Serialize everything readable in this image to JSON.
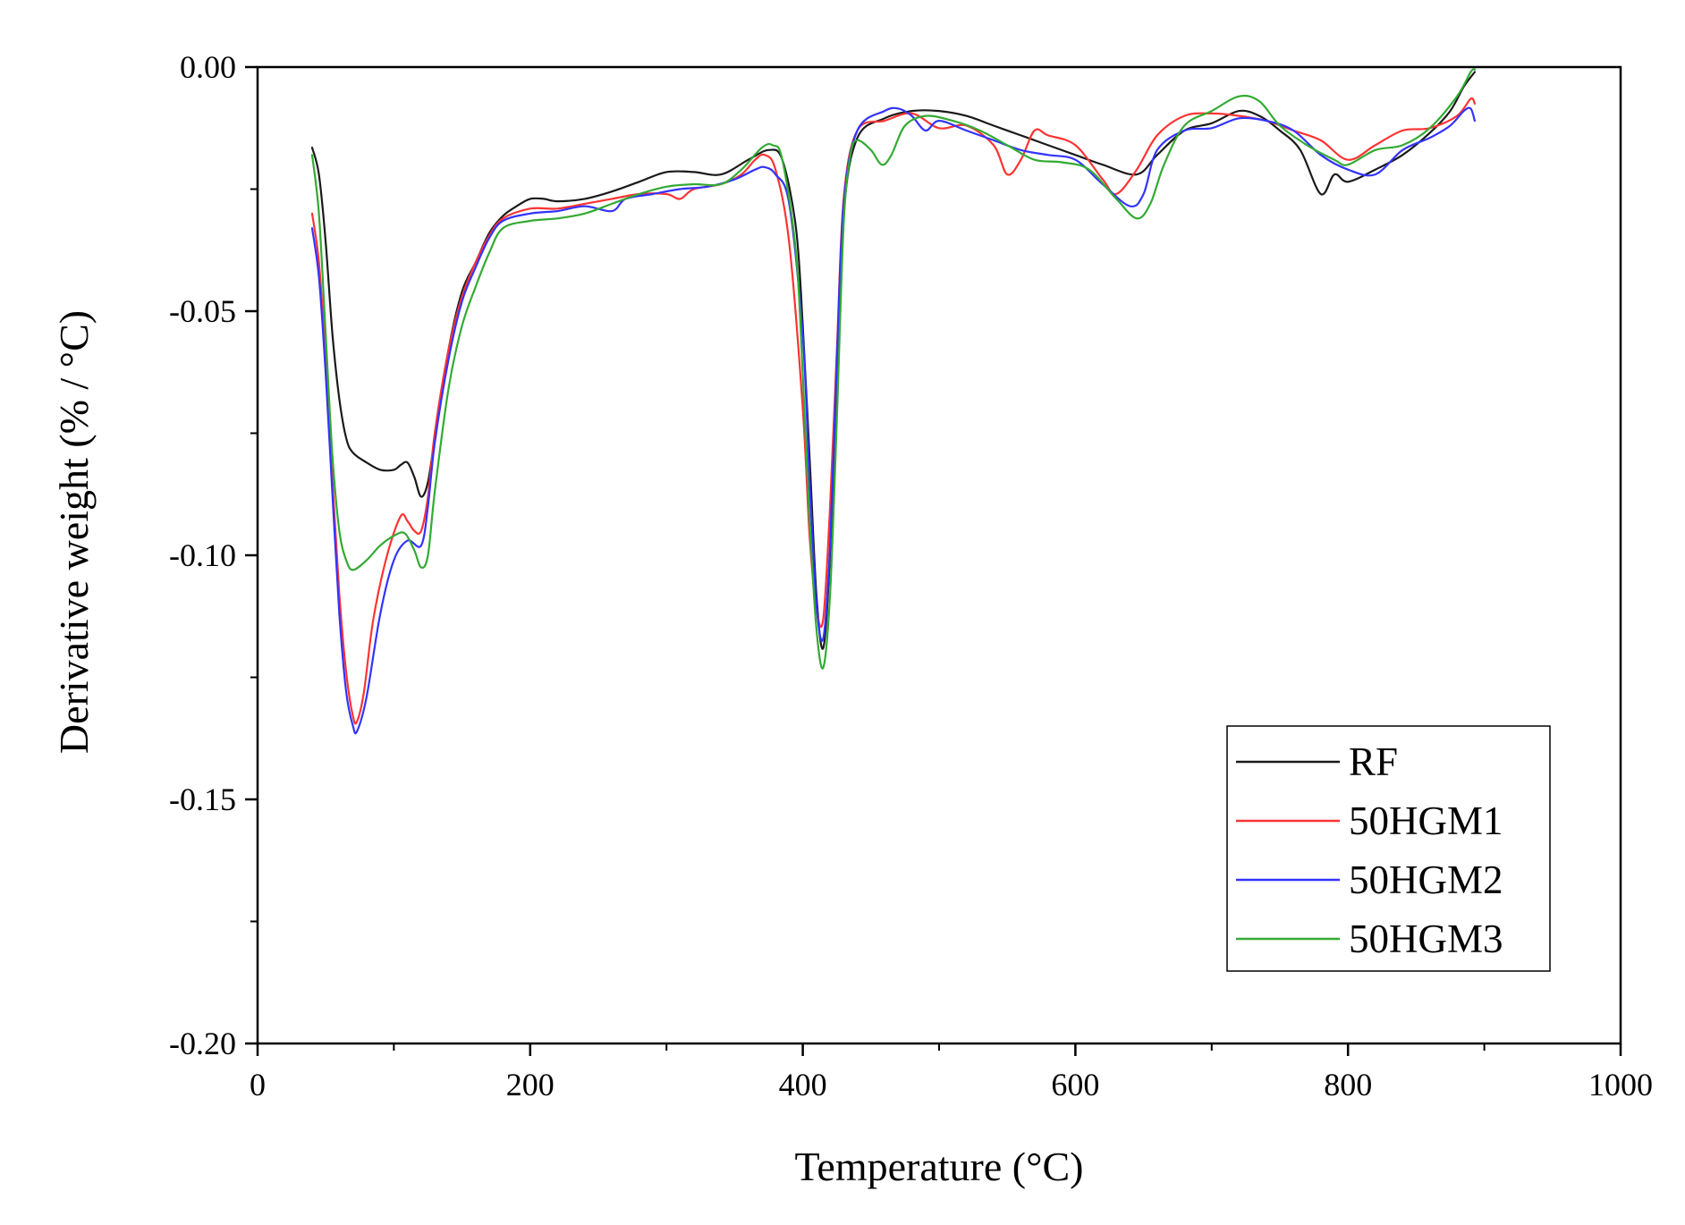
{
  "chart_data": {
    "type": "line",
    "title": "",
    "xlabel": "Temperature (°C)",
    "ylabel": "Derivative weight (% / °C)",
    "xlim": [
      0,
      1000
    ],
    "ylim": [
      -0.2,
      0.0
    ],
    "x_ticks": [
      0,
      200,
      400,
      600,
      800,
      1000
    ],
    "x_tick_labels": [
      "0",
      "200",
      "400",
      "600",
      "800",
      "1000"
    ],
    "y_ticks": [
      0.0,
      -0.05,
      -0.1,
      -0.15,
      -0.2
    ],
    "y_tick_labels": [
      "0.00",
      "-0.05",
      "-0.10",
      "-0.15",
      "-0.20"
    ],
    "grid": false,
    "legend_position": "bottom-right",
    "series": [
      {
        "name": "RF",
        "color": "#1a1a1a",
        "points": [
          [
            40,
            -0.0165
          ],
          [
            45,
            -0.022
          ],
          [
            50,
            -0.036
          ],
          [
            55,
            -0.055
          ],
          [
            60,
            -0.068
          ],
          [
            65,
            -0.076
          ],
          [
            70,
            -0.079
          ],
          [
            80,
            -0.081
          ],
          [
            90,
            -0.0825
          ],
          [
            100,
            -0.0825
          ],
          [
            105,
            -0.0815
          ],
          [
            110,
            -0.081
          ],
          [
            115,
            -0.084
          ],
          [
            120,
            -0.088
          ],
          [
            125,
            -0.085
          ],
          [
            130,
            -0.076
          ],
          [
            140,
            -0.058
          ],
          [
            150,
            -0.046
          ],
          [
            160,
            -0.04
          ],
          [
            170,
            -0.034
          ],
          [
            180,
            -0.0305
          ],
          [
            190,
            -0.0285
          ],
          [
            200,
            -0.027
          ],
          [
            210,
            -0.027
          ],
          [
            220,
            -0.0275
          ],
          [
            240,
            -0.027
          ],
          [
            260,
            -0.0255
          ],
          [
            280,
            -0.0235
          ],
          [
            300,
            -0.0215
          ],
          [
            320,
            -0.0215
          ],
          [
            340,
            -0.022
          ],
          [
            360,
            -0.019
          ],
          [
            375,
            -0.017
          ],
          [
            385,
            -0.019
          ],
          [
            395,
            -0.033
          ],
          [
            400,
            -0.053
          ],
          [
            405,
            -0.08
          ],
          [
            410,
            -0.108
          ],
          [
            415,
            -0.119
          ],
          [
            420,
            -0.1
          ],
          [
            425,
            -0.065
          ],
          [
            430,
            -0.03
          ],
          [
            440,
            -0.0145
          ],
          [
            460,
            -0.0105
          ],
          [
            480,
            -0.009
          ],
          [
            500,
            -0.009
          ],
          [
            520,
            -0.01
          ],
          [
            540,
            -0.012
          ],
          [
            560,
            -0.014
          ],
          [
            580,
            -0.016
          ],
          [
            600,
            -0.018
          ],
          [
            620,
            -0.02
          ],
          [
            645,
            -0.022
          ],
          [
            660,
            -0.018
          ],
          [
            680,
            -0.013
          ],
          [
            700,
            -0.0115
          ],
          [
            720,
            -0.009
          ],
          [
            735,
            -0.01
          ],
          [
            750,
            -0.013
          ],
          [
            765,
            -0.017
          ],
          [
            780,
            -0.026
          ],
          [
            790,
            -0.022
          ],
          [
            800,
            -0.0235
          ],
          [
            820,
            -0.021
          ],
          [
            840,
            -0.018
          ],
          [
            860,
            -0.0135
          ],
          [
            875,
            -0.009
          ],
          [
            885,
            -0.004
          ],
          [
            893,
            -0.001
          ]
        ]
      },
      {
        "name": "50HGM1",
        "color": "#ff3333",
        "points": [
          [
            40,
            -0.03
          ],
          [
            45,
            -0.04
          ],
          [
            50,
            -0.06
          ],
          [
            55,
            -0.085
          ],
          [
            60,
            -0.108
          ],
          [
            65,
            -0.124
          ],
          [
            70,
            -0.133
          ],
          [
            73,
            -0.134
          ],
          [
            78,
            -0.128
          ],
          [
            85,
            -0.113
          ],
          [
            95,
            -0.1
          ],
          [
            105,
            -0.092
          ],
          [
            110,
            -0.093
          ],
          [
            115,
            -0.095
          ],
          [
            120,
            -0.095
          ],
          [
            125,
            -0.088
          ],
          [
            130,
            -0.075
          ],
          [
            140,
            -0.058
          ],
          [
            150,
            -0.047
          ],
          [
            160,
            -0.04
          ],
          [
            170,
            -0.0345
          ],
          [
            180,
            -0.031
          ],
          [
            200,
            -0.029
          ],
          [
            220,
            -0.029
          ],
          [
            240,
            -0.028
          ],
          [
            260,
            -0.027
          ],
          [
            280,
            -0.026
          ],
          [
            300,
            -0.026
          ],
          [
            310,
            -0.027
          ],
          [
            320,
            -0.025
          ],
          [
            340,
            -0.024
          ],
          [
            355,
            -0.022
          ],
          [
            365,
            -0.019
          ],
          [
            372,
            -0.018
          ],
          [
            380,
            -0.021
          ],
          [
            390,
            -0.036
          ],
          [
            400,
            -0.07
          ],
          [
            405,
            -0.096
          ],
          [
            410,
            -0.111
          ],
          [
            415,
            -0.113
          ],
          [
            420,
            -0.09
          ],
          [
            425,
            -0.058
          ],
          [
            430,
            -0.027
          ],
          [
            440,
            -0.013
          ],
          [
            460,
            -0.011
          ],
          [
            480,
            -0.0095
          ],
          [
            500,
            -0.0125
          ],
          [
            520,
            -0.012
          ],
          [
            540,
            -0.016
          ],
          [
            550,
            -0.022
          ],
          [
            560,
            -0.019
          ],
          [
            570,
            -0.013
          ],
          [
            580,
            -0.014
          ],
          [
            600,
            -0.016
          ],
          [
            620,
            -0.023
          ],
          [
            630,
            -0.026
          ],
          [
            645,
            -0.021
          ],
          [
            660,
            -0.014
          ],
          [
            680,
            -0.01
          ],
          [
            700,
            -0.0095
          ],
          [
            720,
            -0.01
          ],
          [
            740,
            -0.011
          ],
          [
            760,
            -0.013
          ],
          [
            780,
            -0.015
          ],
          [
            800,
            -0.019
          ],
          [
            820,
            -0.016
          ],
          [
            840,
            -0.013
          ],
          [
            860,
            -0.0125
          ],
          [
            880,
            -0.01
          ],
          [
            890,
            -0.0065
          ],
          [
            893,
            -0.0075
          ]
        ]
      },
      {
        "name": "50HGM2",
        "color": "#3333ff",
        "points": [
          [
            40,
            -0.033
          ],
          [
            45,
            -0.043
          ],
          [
            50,
            -0.063
          ],
          [
            55,
            -0.088
          ],
          [
            60,
            -0.112
          ],
          [
            65,
            -0.128
          ],
          [
            70,
            -0.135
          ],
          [
            73,
            -0.136
          ],
          [
            80,
            -0.129
          ],
          [
            90,
            -0.112
          ],
          [
            100,
            -0.101
          ],
          [
            110,
            -0.097
          ],
          [
            120,
            -0.098
          ],
          [
            125,
            -0.09
          ],
          [
            130,
            -0.077
          ],
          [
            140,
            -0.06
          ],
          [
            150,
            -0.048
          ],
          [
            160,
            -0.041
          ],
          [
            170,
            -0.035
          ],
          [
            180,
            -0.0315
          ],
          [
            200,
            -0.03
          ],
          [
            220,
            -0.0295
          ],
          [
            240,
            -0.0285
          ],
          [
            260,
            -0.0295
          ],
          [
            270,
            -0.027
          ],
          [
            290,
            -0.026
          ],
          [
            310,
            -0.025
          ],
          [
            330,
            -0.0245
          ],
          [
            350,
            -0.023
          ],
          [
            365,
            -0.021
          ],
          [
            372,
            -0.0205
          ],
          [
            380,
            -0.022
          ],
          [
            390,
            -0.028
          ],
          [
            400,
            -0.055
          ],
          [
            405,
            -0.085
          ],
          [
            410,
            -0.11
          ],
          [
            415,
            -0.117
          ],
          [
            420,
            -0.098
          ],
          [
            425,
            -0.06
          ],
          [
            430,
            -0.028
          ],
          [
            440,
            -0.013
          ],
          [
            460,
            -0.009
          ],
          [
            470,
            -0.0085
          ],
          [
            480,
            -0.01
          ],
          [
            490,
            -0.013
          ],
          [
            500,
            -0.011
          ],
          [
            520,
            -0.013
          ],
          [
            540,
            -0.015
          ],
          [
            560,
            -0.017
          ],
          [
            580,
            -0.018
          ],
          [
            600,
            -0.019
          ],
          [
            620,
            -0.024
          ],
          [
            640,
            -0.0285
          ],
          [
            650,
            -0.026
          ],
          [
            660,
            -0.017
          ],
          [
            680,
            -0.013
          ],
          [
            700,
            -0.0125
          ],
          [
            720,
            -0.0105
          ],
          [
            740,
            -0.011
          ],
          [
            760,
            -0.013
          ],
          [
            780,
            -0.018
          ],
          [
            800,
            -0.021
          ],
          [
            820,
            -0.022
          ],
          [
            840,
            -0.017
          ],
          [
            860,
            -0.0145
          ],
          [
            875,
            -0.012
          ],
          [
            885,
            -0.009
          ],
          [
            890,
            -0.0085
          ],
          [
            893,
            -0.011
          ]
        ]
      },
      {
        "name": "50HGM3",
        "color": "#33aa33",
        "points": [
          [
            40,
            -0.018
          ],
          [
            45,
            -0.03
          ],
          [
            50,
            -0.055
          ],
          [
            55,
            -0.08
          ],
          [
            60,
            -0.095
          ],
          [
            65,
            -0.101
          ],
          [
            70,
            -0.103
          ],
          [
            80,
            -0.101
          ],
          [
            90,
            -0.098
          ],
          [
            100,
            -0.096
          ],
          [
            108,
            -0.0955
          ],
          [
            115,
            -0.099
          ],
          [
            120,
            -0.1025
          ],
          [
            125,
            -0.1
          ],
          [
            130,
            -0.087
          ],
          [
            140,
            -0.066
          ],
          [
            150,
            -0.053
          ],
          [
            160,
            -0.045
          ],
          [
            170,
            -0.038
          ],
          [
            180,
            -0.033
          ],
          [
            200,
            -0.0315
          ],
          [
            220,
            -0.031
          ],
          [
            240,
            -0.03
          ],
          [
            260,
            -0.028
          ],
          [
            280,
            -0.026
          ],
          [
            300,
            -0.0245
          ],
          [
            320,
            -0.024
          ],
          [
            340,
            -0.024
          ],
          [
            355,
            -0.021
          ],
          [
            370,
            -0.0165
          ],
          [
            378,
            -0.016
          ],
          [
            385,
            -0.019
          ],
          [
            395,
            -0.038
          ],
          [
            400,
            -0.063
          ],
          [
            405,
            -0.093
          ],
          [
            410,
            -0.115
          ],
          [
            415,
            -0.123
          ],
          [
            420,
            -0.108
          ],
          [
            425,
            -0.072
          ],
          [
            430,
            -0.032
          ],
          [
            435,
            -0.018
          ],
          [
            440,
            -0.015
          ],
          [
            450,
            -0.017
          ],
          [
            458,
            -0.02
          ],
          [
            465,
            -0.018
          ],
          [
            475,
            -0.012
          ],
          [
            490,
            -0.01
          ],
          [
            510,
            -0.011
          ],
          [
            530,
            -0.013
          ],
          [
            550,
            -0.016
          ],
          [
            570,
            -0.019
          ],
          [
            590,
            -0.0195
          ],
          [
            610,
            -0.021
          ],
          [
            630,
            -0.027
          ],
          [
            645,
            -0.031
          ],
          [
            655,
            -0.028
          ],
          [
            665,
            -0.02
          ],
          [
            680,
            -0.012
          ],
          [
            700,
            -0.009
          ],
          [
            720,
            -0.006
          ],
          [
            735,
            -0.007
          ],
          [
            750,
            -0.012
          ],
          [
            770,
            -0.016
          ],
          [
            790,
            -0.019
          ],
          [
            800,
            -0.02
          ],
          [
            820,
            -0.017
          ],
          [
            840,
            -0.016
          ],
          [
            860,
            -0.0125
          ],
          [
            880,
            -0.006
          ],
          [
            890,
            -0.001
          ],
          [
            893,
            -0.0005
          ]
        ]
      }
    ]
  }
}
